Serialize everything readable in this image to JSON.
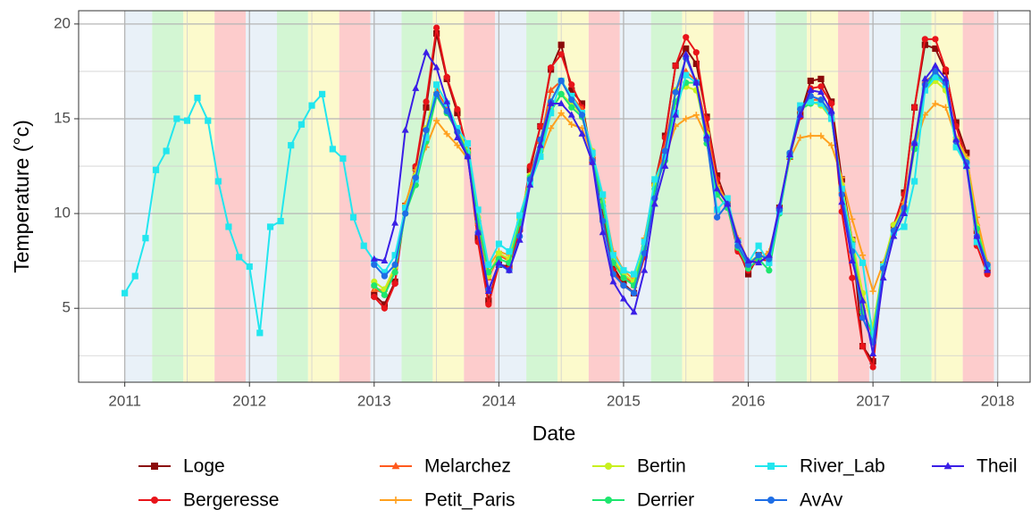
{
  "chart_data": {
    "type": "line",
    "x_label": "Date",
    "y_label": "Temperature (°c)",
    "xlim": [
      2010.63,
      2018.26
    ],
    "xticks": [
      2011,
      2012,
      2013,
      2014,
      2015,
      2016,
      2017,
      2018
    ],
    "ylim": [
      1.1,
      20.7
    ],
    "yticks": [
      5,
      10,
      15,
      20
    ],
    "grid": true,
    "season_colors": [
      "#e9f1f8",
      "#d3f6d3",
      "#fcfacc",
      "#fdcccc"
    ],
    "x": [
      2011,
      2011.083,
      2011.167,
      2011.25,
      2011.333,
      2011.417,
      2011.5,
      2011.583,
      2011.667,
      2011.75,
      2011.833,
      2011.917,
      2012,
      2012.083,
      2012.167,
      2012.25,
      2012.333,
      2012.417,
      2012.5,
      2012.583,
      2012.667,
      2012.75,
      2012.833,
      2012.917,
      2013,
      2013.083,
      2013.167,
      2013.25,
      2013.333,
      2013.417,
      2013.5,
      2013.583,
      2013.667,
      2013.75,
      2013.833,
      2013.917,
      2014,
      2014.083,
      2014.167,
      2014.25,
      2014.333,
      2014.417,
      2014.5,
      2014.583,
      2014.667,
      2014.75,
      2014.833,
      2014.917,
      2015,
      2015.083,
      2015.167,
      2015.25,
      2015.333,
      2015.417,
      2015.5,
      2015.583,
      2015.667,
      2015.75,
      2015.833,
      2015.917,
      2016,
      2016.083,
      2016.167,
      2016.25,
      2016.333,
      2016.417,
      2016.5,
      2016.583,
      2016.667,
      2016.75,
      2016.833,
      2016.917,
      2017,
      2017.083,
      2017.167,
      2017.25,
      2017.333,
      2017.417,
      2017.5,
      2017.583,
      2017.667,
      2017.75,
      2017.833,
      2017.917
    ],
    "series": [
      {
        "name": "Loge",
        "color": "#8b0a0a",
        "marker": "square",
        "values": [
          null,
          null,
          null,
          null,
          null,
          null,
          null,
          null,
          null,
          null,
          null,
          null,
          null,
          null,
          null,
          null,
          null,
          null,
          null,
          null,
          null,
          null,
          null,
          null,
          5.7,
          5.2,
          6.4,
          10.4,
          12.4,
          15.6,
          19.5,
          17.1,
          15.3,
          13.3,
          8.7,
          5.4,
          7.3,
          7.2,
          9.2,
          12.3,
          14.6,
          17.6,
          18.9,
          16.5,
          15.8,
          12.8,
          9.9,
          7.2,
          6.3,
          5.8,
          7.9,
          11.6,
          14.1,
          17.8,
          18.7,
          17.9,
          15.1,
          12.0,
          10.5,
          8.2,
          6.8,
          7.8,
          7.6,
          10.3,
          13.0,
          15.2,
          17.0,
          17.1,
          15.9,
          11.8,
          8.6,
          3.0,
          2.2,
          7.3,
          9.3,
          11.1,
          15.6,
          18.9,
          18.7,
          17.5,
          14.8,
          13.2,
          9.1,
          7.0
        ]
      },
      {
        "name": "Bergeresse",
        "color": "#e8141a",
        "marker": "circle",
        "values": [
          null,
          null,
          null,
          null,
          null,
          null,
          null,
          null,
          null,
          null,
          null,
          null,
          null,
          null,
          null,
          null,
          null,
          null,
          null,
          null,
          null,
          null,
          null,
          null,
          5.6,
          5.0,
          6.3,
          10.3,
          12.5,
          15.9,
          19.8,
          17.2,
          15.5,
          13.2,
          8.5,
          5.2,
          7.3,
          7.1,
          9.1,
          12.5,
          14.6,
          17.7,
          18.4,
          16.8,
          15.6,
          12.7,
          9.7,
          7.0,
          6.2,
          5.8,
          7.7,
          11.5,
          14.0,
          17.8,
          19.3,
          18.5,
          15.0,
          11.8,
          10.4,
          8.0,
          7.0,
          7.6,
          7.5,
          10.3,
          13.1,
          15.1,
          16.6,
          16.7,
          15.8,
          10.1,
          6.6,
          3.0,
          1.9,
          7.2,
          9.4,
          11.0,
          15.6,
          19.2,
          19.2,
          17.6,
          14.6,
          12.8,
          8.3,
          6.8
        ]
      },
      {
        "name": "Melarchez",
        "color": "#ff5a1e",
        "marker": "triangle",
        "values": [
          null,
          null,
          null,
          null,
          null,
          null,
          null,
          null,
          null,
          null,
          null,
          null,
          null,
          null,
          null,
          null,
          null,
          null,
          null,
          null,
          null,
          null,
          null,
          null,
          6.0,
          5.8,
          7.0,
          10.5,
          12.0,
          14.2,
          16.5,
          15.6,
          14.4,
          13.2,
          9.5,
          6.6,
          7.8,
          7.5,
          9.6,
          12.0,
          13.8,
          16.5,
          17.0,
          16.2,
          15.5,
          13.0,
          10.5,
          7.5,
          6.8,
          6.2,
          8.5,
          11.6,
          13.5,
          16.5,
          17.5,
          17.0,
          14.5,
          11.5,
          10.5,
          8.4,
          7.3,
          7.7,
          7.8,
          10.3,
          13.0,
          15.5,
          16.0,
          16.0,
          15.2,
          11.2,
          8.5,
          5.0,
          3.5,
          7.3,
          9.2,
          10.5,
          13.8,
          17.0,
          17.3,
          16.7,
          14.0,
          12.8,
          9.5,
          7.4
        ]
      },
      {
        "name": "Petit_Paris",
        "color": "#ffa01e",
        "marker": "plus",
        "values": [
          null,
          null,
          null,
          null,
          null,
          null,
          null,
          null,
          null,
          null,
          null,
          null,
          null,
          null,
          null,
          null,
          null,
          null,
          null,
          null,
          null,
          null,
          null,
          null,
          6.1,
          5.9,
          7.1,
          10.5,
          12.3,
          13.5,
          14.9,
          14.2,
          13.6,
          12.9,
          9.6,
          7.2,
          8.0,
          7.8,
          9.8,
          11.8,
          13.0,
          14.5,
          15.3,
          14.7,
          14.5,
          13.0,
          10.8,
          8.0,
          7.0,
          6.5,
          8.7,
          11.5,
          13.0,
          14.6,
          15.0,
          15.2,
          14.0,
          11.5,
          10.6,
          8.7,
          7.5,
          7.6,
          8.0,
          10.1,
          12.9,
          14.0,
          14.1,
          14.1,
          13.6,
          11.9,
          9.7,
          7.8,
          5.9,
          7.4,
          9.2,
          10.6,
          13.5,
          15.2,
          15.8,
          15.6,
          14.0,
          13.0,
          9.8,
          7.4
        ]
      },
      {
        "name": "Bertin",
        "color": "#c8f01e",
        "marker": "circle",
        "values": [
          null,
          null,
          null,
          null,
          null,
          null,
          null,
          null,
          null,
          null,
          null,
          null,
          null,
          null,
          null,
          null,
          null,
          null,
          null,
          null,
          null,
          null,
          null,
          null,
          6.4,
          6.0,
          7.2,
          10.2,
          12.0,
          14.5,
          16.8,
          15.8,
          14.5,
          13.3,
          9.8,
          6.7,
          7.9,
          7.6,
          9.7,
          12.0,
          13.5,
          15.5,
          16.3,
          15.8,
          15.2,
          13.3,
          10.6,
          7.6,
          6.8,
          6.4,
          8.4,
          11.5,
          13.0,
          16.5,
          16.7,
          16.5,
          14.2,
          11.3,
          10.5,
          8.4,
          7.4,
          7.8,
          7.6,
          10.2,
          13.1,
          15.6,
          15.9,
          15.7,
          15.0,
          11.5,
          8.6,
          5.8,
          4.0,
          7.3,
          9.4,
          10.3,
          13.5,
          16.5,
          17.0,
          16.5,
          13.9,
          12.8,
          9.3,
          7.3
        ]
      },
      {
        "name": "Derrier",
        "color": "#1ee66e",
        "marker": "circle",
        "values": [
          null,
          null,
          null,
          null,
          null,
          null,
          null,
          null,
          null,
          null,
          null,
          null,
          null,
          null,
          null,
          null,
          null,
          null,
          null,
          null,
          null,
          null,
          null,
          null,
          6.2,
          5.7,
          6.9,
          10.0,
          11.5,
          13.8,
          16.2,
          15.3,
          14.3,
          13.2,
          9.6,
          6.9,
          7.6,
          7.4,
          9.5,
          11.9,
          13.3,
          15.4,
          16.3,
          15.6,
          15.1,
          13.1,
          10.4,
          7.4,
          6.6,
          6.2,
          8.2,
          11.3,
          12.8,
          15.9,
          16.9,
          16.9,
          13.7,
          11.0,
          10.3,
          8.2,
          7.1,
          7.6,
          7.0,
          10.0,
          13.0,
          15.5,
          15.8,
          15.9,
          15.0,
          11.3,
          8.4,
          4.8,
          3.7,
          7.2,
          9.1,
          10.2,
          13.4,
          16.6,
          17.4,
          16.8,
          13.5,
          12.6,
          9.2,
          7.2
        ]
      },
      {
        "name": "River_Lab",
        "color": "#22e6ee",
        "marker": "square",
        "values": [
          5.8,
          6.7,
          8.7,
          12.3,
          13.3,
          15.0,
          14.9,
          16.1,
          14.9,
          11.7,
          9.3,
          7.7,
          7.2,
          3.7,
          9.3,
          9.6,
          13.6,
          14.7,
          15.7,
          16.3,
          13.4,
          12.9,
          9.8,
          8.3,
          7.5,
          6.9,
          7.8,
          10.3,
          11.8,
          14.0,
          16.8,
          15.8,
          14.5,
          13.7,
          10.2,
          7.3,
          8.4,
          8.0,
          9.9,
          11.6,
          13.0,
          15.3,
          17.0,
          16.2,
          15.3,
          13.2,
          11.0,
          7.8,
          7.0,
          6.8,
          8.5,
          11.8,
          13.0,
          15.3,
          17.3,
          16.9,
          14.0,
          10.2,
          10.8,
          8.5,
          7.4,
          8.3,
          7.4,
          10.1,
          13.1,
          15.7,
          15.9,
          15.8,
          15.0,
          11.3,
          8.3,
          7.4,
          3.4,
          7.2,
          9.0,
          9.3,
          11.7,
          16.5,
          17.2,
          16.8,
          13.5,
          12.5,
          8.5,
          7.2
        ]
      },
      {
        "name": "AvAv",
        "color": "#1e6ee6",
        "marker": "circle",
        "values": [
          null,
          null,
          null,
          null,
          null,
          null,
          null,
          null,
          null,
          null,
          null,
          null,
          null,
          null,
          null,
          null,
          null,
          null,
          null,
          null,
          null,
          null,
          null,
          null,
          7.3,
          6.7,
          7.3,
          10.0,
          11.9,
          14.4,
          16.3,
          15.4,
          14.3,
          13.0,
          9.0,
          6.0,
          7.3,
          7.0,
          8.8,
          11.8,
          13.9,
          15.9,
          17.0,
          16.0,
          15.2,
          12.8,
          9.6,
          6.8,
          6.2,
          5.8,
          7.9,
          10.8,
          13.3,
          16.4,
          18.2,
          16.9,
          13.9,
          9.8,
          10.5,
          8.3,
          7.3,
          7.8,
          7.6,
          10.2,
          13.2,
          15.5,
          16.2,
          16.0,
          15.3,
          11.0,
          8.0,
          4.5,
          3.2,
          7.1,
          9.1,
          10.3,
          13.7,
          16.8,
          17.5,
          16.9,
          13.8,
          12.7,
          8.8,
          7.3
        ]
      },
      {
        "name": "Theil",
        "color": "#3a1ee6",
        "marker": "triangle",
        "values": [
          null,
          null,
          null,
          null,
          null,
          null,
          null,
          null,
          null,
          null,
          null,
          null,
          null,
          null,
          null,
          null,
          null,
          null,
          null,
          null,
          null,
          null,
          null,
          null,
          7.6,
          7.5,
          9.5,
          14.4,
          16.6,
          18.5,
          17.7,
          15.9,
          14.0,
          13.0,
          9.0,
          5.9,
          7.4,
          7.0,
          8.6,
          11.5,
          13.6,
          15.8,
          15.8,
          15.2,
          14.2,
          12.7,
          9.0,
          6.4,
          5.5,
          4.8,
          7.0,
          10.5,
          12.5,
          15.2,
          18.4,
          16.9,
          14.1,
          11.3,
          10.5,
          8.6,
          7.5,
          7.4,
          7.8,
          10.4,
          13.1,
          15.2,
          16.5,
          16.4,
          15.4,
          10.6,
          7.5,
          5.4,
          2.6,
          6.6,
          8.8,
          10.0,
          13.7,
          17.1,
          17.8,
          17.1,
          13.9,
          12.5,
          8.8,
          7.0
        ]
      }
    ]
  }
}
